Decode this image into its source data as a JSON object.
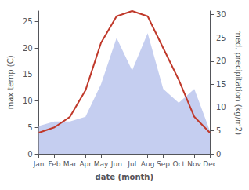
{
  "chart_data": {
    "type": "line",
    "xlabel": "date (month)",
    "ylabel": "max temp (C)",
    "y2label": "med. precipitation (kg/m2)",
    "categories": [
      "Jan",
      "Feb",
      "Mar",
      "Apr",
      "May",
      "Jun",
      "Jul",
      "Aug",
      "Sep",
      "Oct",
      "Nov",
      "Dec"
    ],
    "series": [
      {
        "type": "area",
        "color": "#c5cef0",
        "axis": "y2",
        "values": [
          6,
          7,
          7,
          8,
          15,
          25,
          18,
          26,
          14,
          11,
          14,
          5
        ]
      },
      {
        "type": "line",
        "color": "#c0392b",
        "values": [
          4,
          5,
          7,
          12,
          21,
          26,
          27,
          26,
          20,
          14,
          7,
          4
        ]
      }
    ],
    "ylim": [
      0,
      27
    ],
    "yticks": [
      0,
      5,
      10,
      15,
      20,
      25
    ],
    "y2lim": [
      0,
      30.8
    ],
    "y2ticks": [
      0,
      5,
      10,
      15,
      20,
      25,
      30
    ],
    "grid": false
  }
}
